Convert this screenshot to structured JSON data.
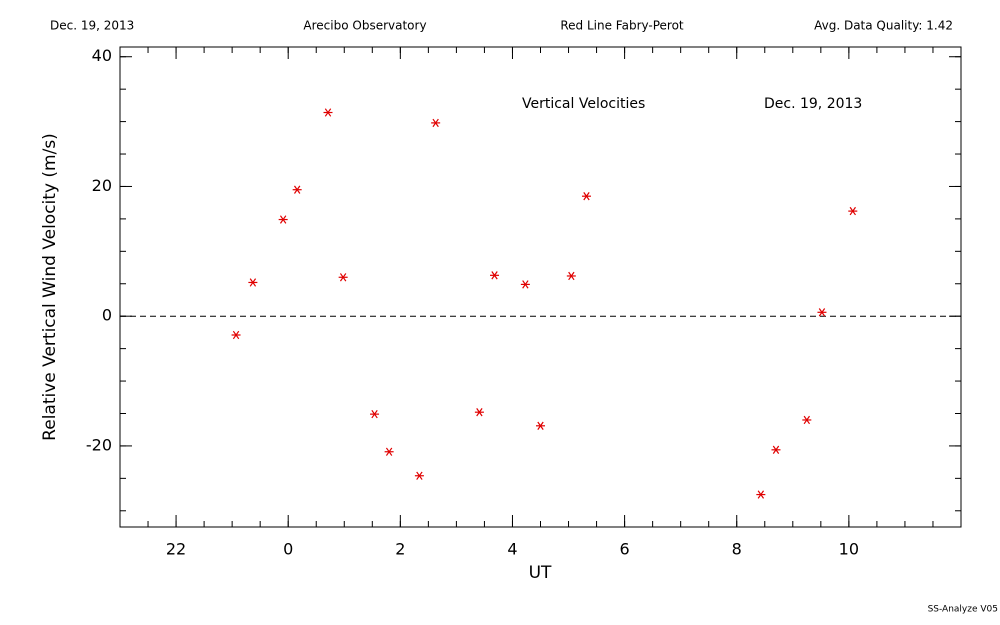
{
  "chart_data": {
    "type": "scatter",
    "header": [
      "Dec. 19, 2013",
      "Arecibo Observatory",
      "Red Line Fabry-Perot",
      "Avg. Data Quality: 1.42"
    ],
    "annotations": [
      "Vertical Velocities",
      "Dec. 19, 2013"
    ],
    "footer": "SS-Analyze V05",
    "x_label": "UT",
    "y_label": "Relative Vertical Wind Velocity (m/s)",
    "xlim": [
      -3,
      12
    ],
    "ylim": [
      -32.5,
      41.5
    ],
    "xticks": [
      {
        "value": -2,
        "label": "22"
      },
      0,
      2,
      4,
      6,
      8,
      10
    ],
    "yticks": [
      -20,
      0,
      20,
      40
    ],
    "xminor": 0.5,
    "yminor": 5,
    "hline": 0,
    "series": [
      {
        "color": "#e00000",
        "x": [
          -0.93,
          -0.63,
          -0.09,
          0.16,
          0.71,
          0.98,
          1.54,
          1.8,
          2.34,
          2.63,
          3.41,
          3.68,
          4.23,
          4.5,
          5.05,
          5.32,
          8.43,
          8.7,
          9.25,
          9.52,
          10.07
        ],
        "values": [
          -2.9,
          5.2,
          14.9,
          19.5,
          31.4,
          6.0,
          -15.1,
          -20.9,
          -24.6,
          29.8,
          -14.8,
          6.3,
          4.9,
          -16.9,
          6.2,
          18.5,
          -27.5,
          -20.6,
          -16.0,
          0.6,
          16.2
        ]
      }
    ]
  }
}
